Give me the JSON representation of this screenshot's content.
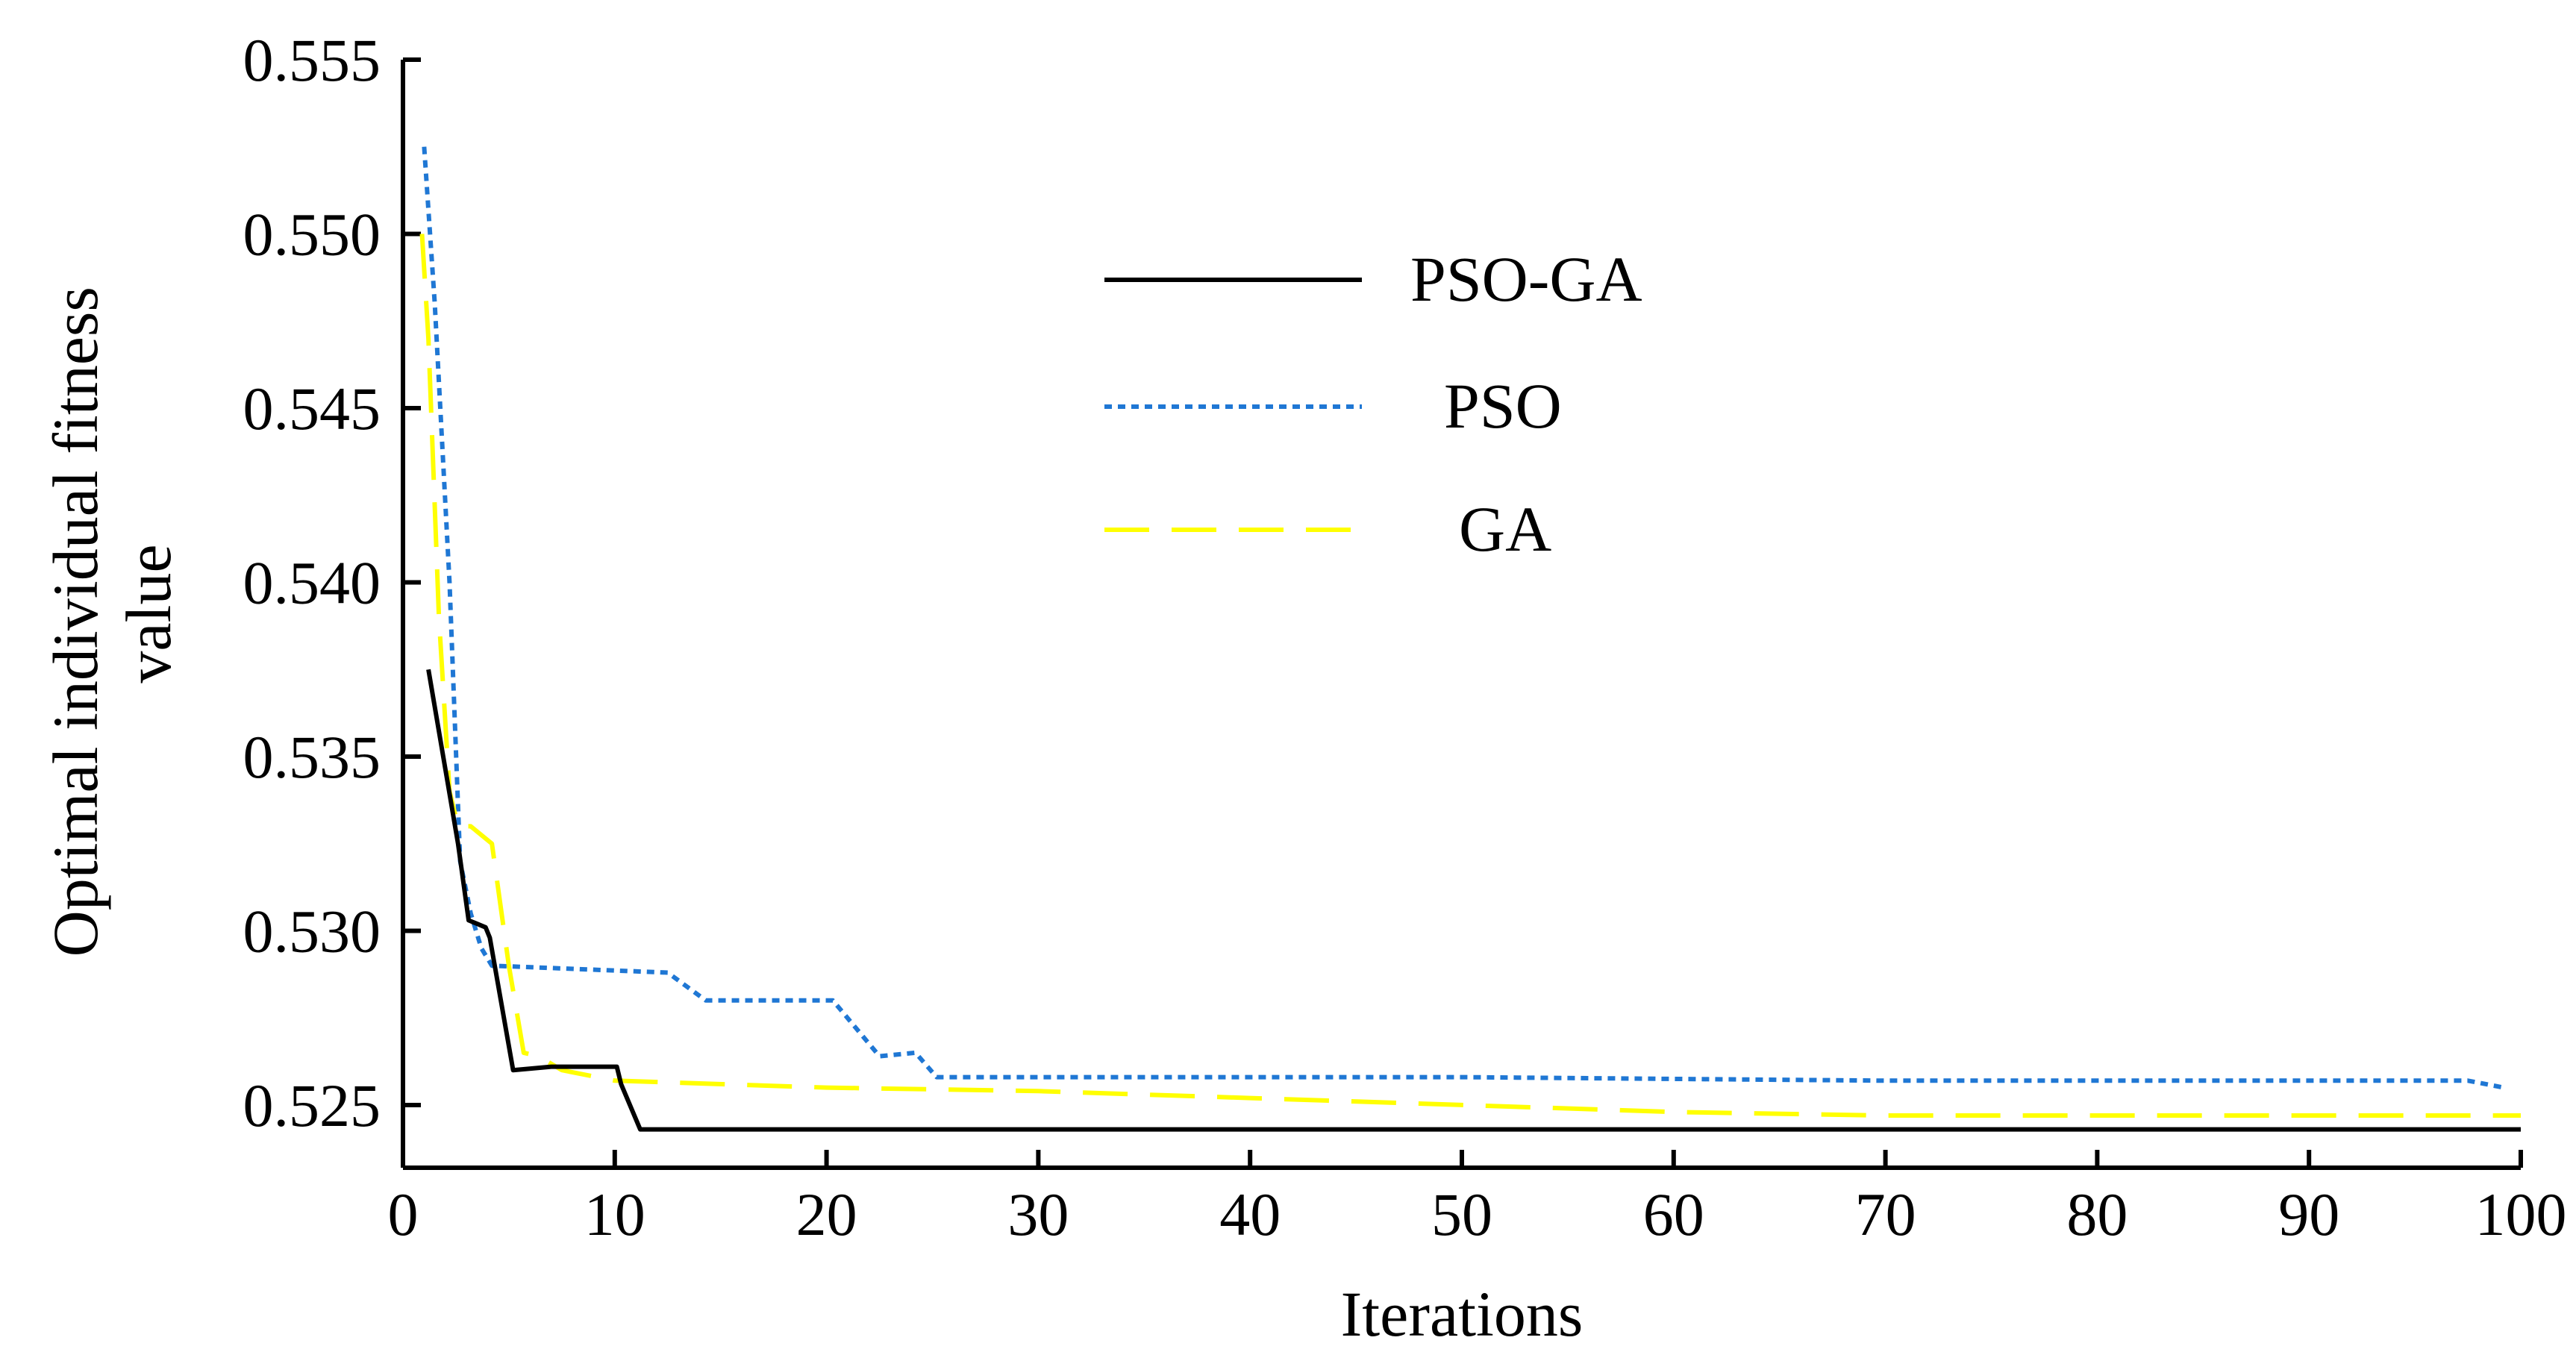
{
  "chart_data": {
    "type": "line",
    "title": "",
    "xlabel": "Iterations",
    "ylabel_lines": [
      "Optimal individual fitness",
      "value"
    ],
    "xlim": [
      0,
      100
    ],
    "ylim": [
      0.5232,
      0.555
    ],
    "x_ticks": [
      0,
      10,
      20,
      30,
      40,
      50,
      60,
      70,
      80,
      90,
      100
    ],
    "x_tick_labels": [
      "0",
      "10",
      "20",
      "30",
      "40",
      "50",
      "60",
      "70",
      "80",
      "90",
      "100"
    ],
    "y_ticks": [
      0.525,
      0.53,
      0.535,
      0.54,
      0.545,
      0.55,
      0.555
    ],
    "y_tick_labels": [
      "0.525",
      "0.530",
      "0.535",
      "0.540",
      "0.545",
      "0.550",
      "0.555"
    ],
    "grid": false,
    "legend_position": "top-center",
    "series": [
      {
        "name": "PSO-GA",
        "color": "#000000",
        "style": "solid",
        "x": [
          1.2,
          2.6,
          3.1,
          3.9,
          4.1,
          5.2,
          7.0,
          10.1,
          10.3,
          11.2,
          100
        ],
        "y": [
          0.5375,
          0.5325,
          0.5303,
          0.5301,
          0.5298,
          0.526,
          0.5261,
          0.5261,
          0.5256,
          0.5243,
          0.5243
        ]
      },
      {
        "name": "PSO",
        "color": "#1f77d4",
        "style": "dotted",
        "x": [
          1.0,
          1.5,
          2.2,
          2.7,
          3.2,
          3.7,
          4.2,
          12.5,
          14.3,
          20.3,
          22.5,
          24.2,
          25.2,
          30,
          50,
          70,
          90,
          97.5,
          99.2
        ],
        "y": [
          0.5525,
          0.548,
          0.54,
          0.532,
          0.5305,
          0.5295,
          0.529,
          0.5288,
          0.528,
          0.528,
          0.5264,
          0.5265,
          0.5258,
          0.5258,
          0.5258,
          0.5257,
          0.5257,
          0.5257,
          0.5255
        ]
      },
      {
        "name": "GA",
        "color": "#ffff00",
        "style": "dashed",
        "x": [
          0.9,
          1.2,
          1.7,
          2.2,
          2.6,
          3.2,
          4.2,
          5.0,
          5.7,
          6.4,
          7.5,
          10,
          20,
          30,
          40,
          50,
          60,
          70,
          80,
          90,
          100
        ],
        "y": [
          0.55,
          0.547,
          0.539,
          0.534,
          0.533,
          0.533,
          0.5325,
          0.529,
          0.5265,
          0.5264,
          0.526,
          0.5257,
          0.5255,
          0.5254,
          0.5252,
          0.525,
          0.5248,
          0.5247,
          0.5247,
          0.5247,
          0.5247
        ]
      }
    ]
  }
}
